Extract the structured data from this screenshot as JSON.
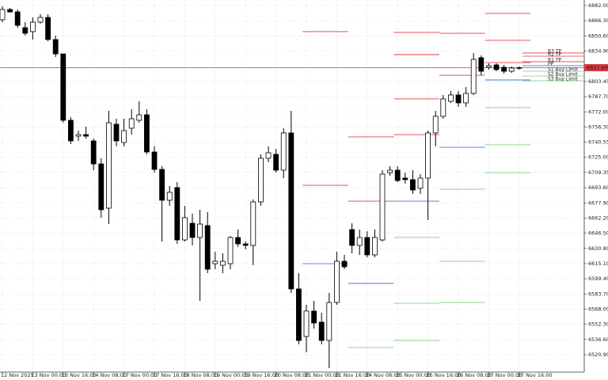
{
  "chart_data": {
    "type": "candlestick",
    "categories": [
      "12 Nov 2025",
      null,
      null,
      null,
      "13 Nov 00:00",
      null,
      null,
      null,
      "13 Nov 16:00",
      null,
      null,
      null,
      "14 Nov 08:00",
      null,
      null,
      null,
      "17 Nov 00:00",
      null,
      null,
      null,
      "17 Nov 16:00",
      null,
      null,
      null,
      "18 Nov 08:00",
      null,
      null,
      null,
      "19 Nov 00:00",
      null,
      null,
      null,
      "19 Nov 16:00",
      null,
      null,
      null,
      "20 Nov 08:00",
      null,
      null,
      null,
      "21 Nov 00:00",
      null,
      null,
      null,
      "21 Nov 16:00",
      null,
      null,
      null,
      "24 Nov 08:00",
      null,
      null,
      null,
      "25 Nov 00:00",
      null,
      null,
      null,
      "25 Nov 16:00",
      null,
      null,
      null,
      "26 Nov 08:00",
      null,
      null,
      null,
      "27 Nov 00:00",
      null,
      null,
      null,
      "27 Nov 16:00"
    ],
    "open": [
      6867.3,
      6877.9,
      6875.4,
      6859.1,
      6855.0,
      6864.8,
      6869.7,
      6846.8,
      6832.0,
      6763.3,
      6746.9,
      6748.5,
      6742.0,
      6718.2,
      6672.4,
      6759.2,
      6740.3,
      6755.1,
      6763.3,
      6769.0,
      6730.5,
      6712.5,
      6680.6,
      6693.7,
      6639.6,
      6656.8,
      6642.1,
      6654.4,
      6615.0,
      6613.4,
      6615.0,
      6642.1,
      6635.5,
      6633.9,
      6678.9,
      6724.0,
      6728.1,
      6711.7,
      6750.2,
      6588.9,
      6539.7,
      6566.0,
      6554.5,
      6535.6,
      6574.9,
      6617.5,
      6650.3,
      6633.9,
      6642.1,
      6624.1,
      6639.6,
      6709.2,
      6711.7,
      6703.5,
      6701.9,
      6692.9,
      6703.5,
      6750.2,
      6767.4,
      6782.9,
      6789.5,
      6781.3,
      6791.1,
      6828.0,
      6818.1,
      6820.6,
      6818.1,
      6814.0,
      6817.3
    ],
    "high": [
      6881.2,
      6879.5,
      6877.9,
      6864.8,
      6869.7,
      6873.0,
      6873.0,
      6850.9,
      6832.0,
      6766.5,
      6752.6,
      6756.7,
      6744.4,
      6724.0,
      6773.1,
      6764.9,
      6764.9,
      6774.7,
      6782.9,
      6774.7,
      6736.3,
      6715.8,
      6695.3,
      6699.4,
      6674.8,
      6666.7,
      6670.8,
      6668.3,
      6627.3,
      6625.7,
      6643.7,
      6650.3,
      6638.0,
      6681.4,
      6728.1,
      6736.3,
      6733.8,
      6755.1,
      6773.1,
      6605.2,
      6572.5,
      6576.6,
      6564.3,
      6584.8,
      6627.3,
      6624.1,
      6656.8,
      6650.3,
      6648.6,
      6650.3,
      6711.7,
      6715.8,
      6715.8,
      6709.2,
      6711.7,
      6707.6,
      6752.6,
      6773.1,
      6789.5,
      6793.6,
      6793.6,
      6797.7,
      6832.9,
      6830.4,
      6822.2,
      6822.2,
      6820.6,
      6819.0,
      6819.0
    ],
    "low": [
      6864.8,
      6874.6,
      6859.1,
      6850.9,
      6846.8,
      6863.2,
      6845.1,
      6828.8,
      6760.8,
      6738.7,
      6742.0,
      6744.4,
      6711.7,
      6662.6,
      6656.0,
      6736.3,
      6736.3,
      6748.5,
      6760.8,
      6728.1,
      6709.2,
      6638.0,
      6674.8,
      6635.5,
      6638.0,
      6633.9,
      6576.6,
      6605.2,
      6609.3,
      6605.2,
      6609.3,
      6632.3,
      6629.8,
      6613.4,
      6674.8,
      6719.9,
      6709.2,
      6703.5,
      6584.8,
      6531.6,
      6523.4,
      6547.9,
      6531.6,
      6507.0,
      6572.5,
      6609.3,
      6625.7,
      6624.1,
      6621.6,
      6621.6,
      6638.0,
      6706.0,
      6699.4,
      6697.8,
      6687.1,
      6687.1,
      6660.1,
      6736.3,
      6764.9,
      6781.3,
      6777.2,
      6777.2,
      6789.5,
      6809.9,
      6815.7,
      6814.0,
      6811.6,
      6812.4,
      6815.7
    ],
    "close": [
      6877.9,
      6875.4,
      6861.5,
      6853.3,
      6864.8,
      6869.7,
      6846.8,
      6832.0,
      6763.3,
      6742.0,
      6748.5,
      6746.9,
      6718.2,
      6670.8,
      6760.8,
      6742.0,
      6752.6,
      6764.9,
      6769.0,
      6730.5,
      6712.5,
      6680.6,
      6688.8,
      6639.6,
      6662.6,
      6642.1,
      6656.0,
      6609.3,
      6617.5,
      6617.5,
      6642.1,
      6635.5,
      6633.9,
      6678.9,
      6724.0,
      6729.7,
      6711.7,
      6750.2,
      6588.9,
      6535.6,
      6566.0,
      6553.7,
      6535.6,
      6574.9,
      6617.5,
      6611.8,
      6633.9,
      6642.1,
      6624.1,
      6642.1,
      6707.6,
      6711.7,
      6701.0,
      6701.9,
      6691.2,
      6703.5,
      6750.2,
      6767.4,
      6785.4,
      6789.5,
      6781.3,
      6791.1,
      6826.3,
      6814.0,
      6819.8,
      6815.7,
      6814.0,
      6817.3,
      6817.69
    ],
    "up_color": "#ffffff",
    "down_color": "#000000",
    "last_price": 6817.69,
    "last_price_color": "#d9363e",
    "resistance_color": "#e03c44",
    "pivot_color": "#4a78d0",
    "support_color": "#7fd07f",
    "pivot_days": [
      {
        "resistance": [
          6855.0,
          6696.1
        ],
        "pivot": 6615.0,
        "support": []
      },
      {
        "resistance": [
          6746.1,
          6679.7
        ],
        "pivot": 6594.6,
        "support": [
          6528.3
        ]
      },
      {
        "resistance": [
          6854.2,
          6831.2,
          6785.4,
          6748.5
        ],
        "pivot": 6679.7,
        "support": [
          6642.1,
          6574.1,
          6535.6
        ]
      },
      {
        "resistance": [
          6853.3,
          6809.9
        ],
        "pivot": 6735.4,
        "support": [
          6692.0,
          6617.5,
          6574.9
        ]
      },
      {
        "resistance": [
          6873.8,
          6846.0,
          6823.0
        ],
        "pivot": 6805.0,
        "support": [
          6776.4,
          6737.9,
          6709.2
        ]
      }
    ],
    "current_levels": [
      {
        "name": "R3 TP",
        "value": 6832.9,
        "color": "#e03c44"
      },
      {
        "name": "R2 TP",
        "value": 6829.6,
        "color": "#e03c44"
      },
      {
        "name": "R1 TP",
        "value": 6823.9,
        "color": "#e03c44"
      },
      {
        "name": "PP",
        "value": 6819.8,
        "color": "#4a78d0"
      },
      {
        "name": "S1 Buy Limit",
        "value": 6814.0,
        "color": "#7fd07f"
      },
      {
        "name": "S2 Buy Limit",
        "value": 6809.1,
        "color": "#7fd07f"
      },
      {
        "name": "S3 Buy Limit",
        "value": 6804.2,
        "color": "#7fd07f"
      }
    ],
    "ylim": [
      6502.9,
      6887.7
    ],
    "yticks": [
      {
        "value": 6882.0,
        "label": "6882.00"
      },
      {
        "value": 6866.3,
        "label": "6866.30"
      },
      {
        "value": 6850.6,
        "label": "6850.60"
      },
      {
        "value": 6834.9,
        "label": "6834.90"
      },
      {
        "value": 6803.45,
        "label": "6803.45"
      },
      {
        "value": 6787.7,
        "label": "6787.70"
      },
      {
        "value": 6772.0,
        "label": "6772.00"
      },
      {
        "value": 6756.3,
        "label": "6756.30"
      },
      {
        "value": 6740.55,
        "label": "6740.55"
      },
      {
        "value": 6725.0,
        "label": "6725.00"
      },
      {
        "value": 6709.35,
        "label": "6709.35"
      },
      {
        "value": 6693.6,
        "label": "6693.60"
      },
      {
        "value": 6677.9,
        "label": "6677.90"
      },
      {
        "value": 6662.2,
        "label": "6662.20"
      },
      {
        "value": 6646.5,
        "label": "6646.50"
      },
      {
        "value": 6630.8,
        "label": "6630.80"
      },
      {
        "value": 6615.1,
        "label": "6615.10"
      },
      {
        "value": 6599.4,
        "label": "6599.40"
      },
      {
        "value": 6583.7,
        "label": "6583.70"
      },
      {
        "value": 6568.0,
        "label": "6568.00"
      },
      {
        "value": 6552.3,
        "label": "6552.30"
      },
      {
        "value": 6536.6,
        "label": "6536.60"
      },
      {
        "value": 6520.9,
        "label": "6520.90"
      }
    ],
    "grid": true
  }
}
